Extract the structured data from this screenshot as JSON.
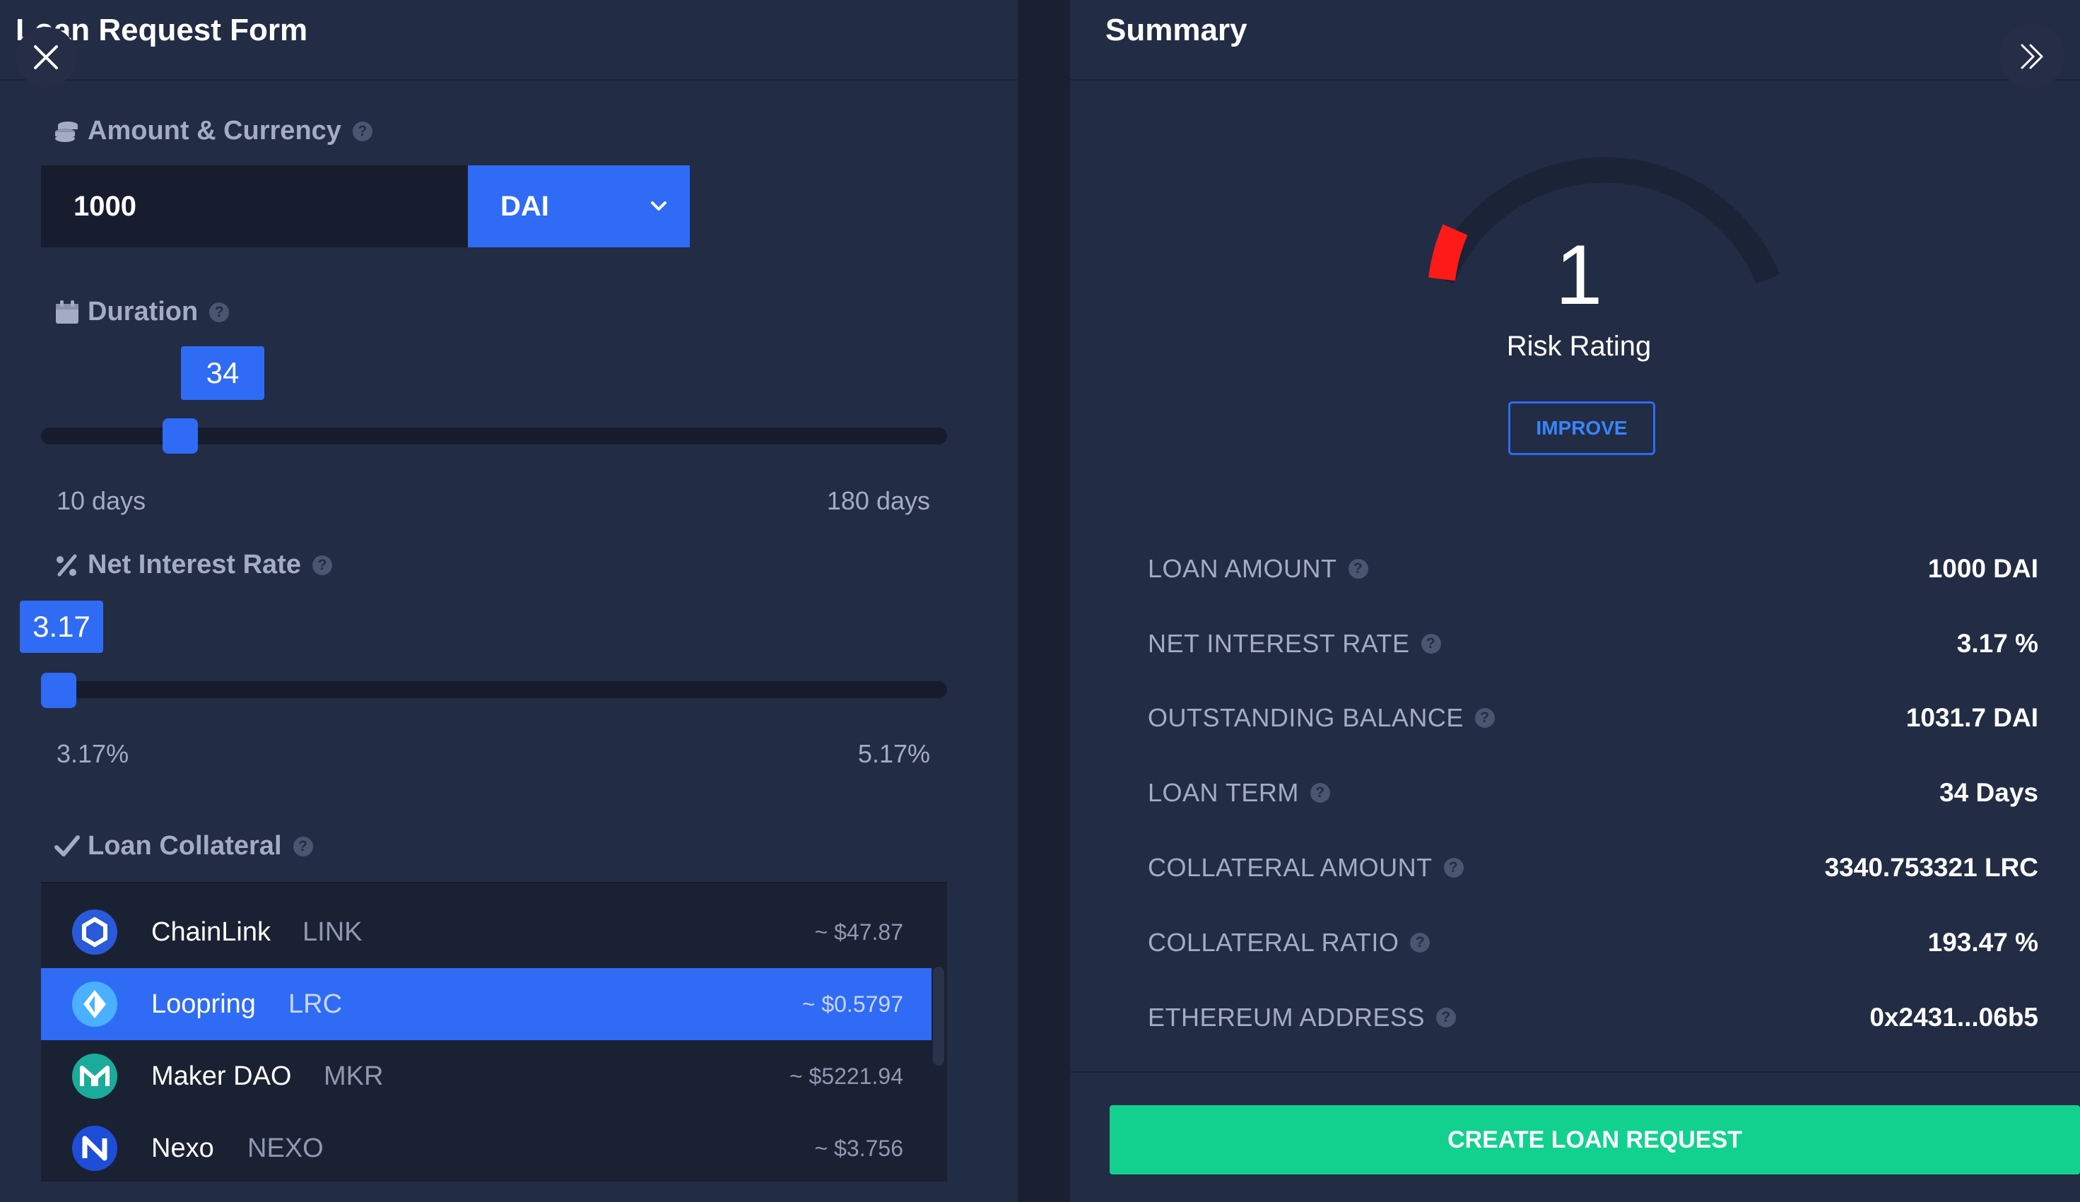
{
  "form": {
    "title": "Loan Request Form",
    "amount_section": {
      "label": "Amount & Currency",
      "amount_value": "1000",
      "currency": "DAI"
    },
    "duration_section": {
      "label": "Duration",
      "value": "34",
      "min_label": "10 days",
      "max_label": "180 days",
      "level": 0.14
    },
    "interest_section": {
      "label": "Net Interest Rate",
      "value": "3.17",
      "min_label": "3.17%",
      "max_label": "5.17%",
      "level": 0.0
    },
    "collateral_section": {
      "label": "Loan Collateral",
      "items": [
        {
          "name": "ChainLink",
          "symbol": "LINK",
          "price": "~ $47.87",
          "selected": false,
          "icon": "chainlink-icon",
          "color": "#2a5ada"
        },
        {
          "name": "Loopring",
          "symbol": "LRC",
          "price": "~ $0.5797",
          "selected": true,
          "icon": "loopring-icon",
          "color": "#1c60ff"
        },
        {
          "name": "Maker DAO",
          "symbol": "MKR",
          "price": "~ $5221.94",
          "selected": false,
          "icon": "maker-icon",
          "color": "#1aab9b"
        },
        {
          "name": "Nexo",
          "symbol": "NEXO",
          "price": "~ $3.756",
          "selected": false,
          "icon": "nexo-icon",
          "color": "#1e4dd8"
        }
      ]
    }
  },
  "summary": {
    "title": "Summary",
    "risk_value": "1",
    "risk_label": "Risk Rating",
    "improve_label": "IMPROVE",
    "rows": [
      {
        "label": "LOAN AMOUNT",
        "value": "1000 DAI"
      },
      {
        "label": "NET INTEREST RATE",
        "value": "3.17 %"
      },
      {
        "label": "OUTSTANDING BALANCE",
        "value": "1031.7 DAI"
      },
      {
        "label": "LOAN TERM",
        "value": "34 Days"
      },
      {
        "label": "COLLATERAL AMOUNT",
        "value": "3340.753321 LRC"
      },
      {
        "label": "COLLATERAL RATIO",
        "value": "193.47 %"
      },
      {
        "label": "ETHEREUM ADDRESS",
        "value": "0x2431...06b5"
      }
    ],
    "create_label": "CREATE LOAN REQUEST"
  },
  "colors": {
    "accent": "#2f6bf5",
    "success": "#12d18e",
    "risk": "#ff1a1a"
  }
}
